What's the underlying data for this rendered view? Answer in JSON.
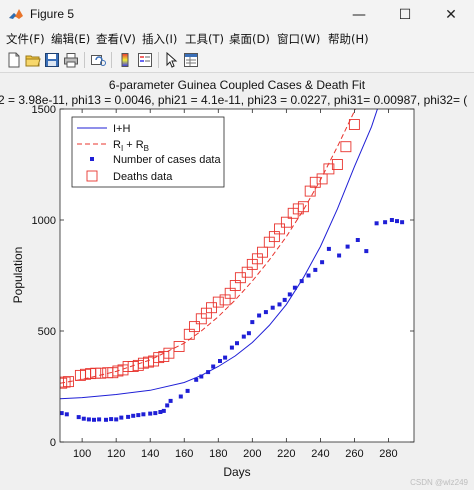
{
  "window": {
    "title": "Figure 5",
    "minimize_glyph": "—",
    "maximize_glyph": "☐",
    "close_glyph": "✕"
  },
  "menu": [
    {
      "label": "文件(F)"
    },
    {
      "label": "编辑(E)"
    },
    {
      "label": "查看(V)"
    },
    {
      "label": "插入(I)"
    },
    {
      "label": "工具(T)"
    },
    {
      "label": "桌面(D)"
    },
    {
      "label": "窗口(W)"
    },
    {
      "label": "帮助(H)"
    }
  ],
  "toolbar": [
    {
      "icon": "new-figure-icon"
    },
    {
      "icon": "open-file-icon"
    },
    {
      "icon": "save-icon"
    },
    {
      "icon": "print-icon"
    },
    {
      "icon": "link-plot-icon"
    },
    {
      "icon": "insert-colorbar-icon"
    },
    {
      "icon": "insert-legend-icon"
    },
    {
      "icon": "edit-plot-arrow-icon"
    },
    {
      "icon": "property-inspector-icon"
    }
  ],
  "figure": {
    "title_line1": "6-parameter Guinea Coupled Cases & Death Fit",
    "title_line2": "2 = 3.98e-11, phi13 = 0.0046, phi21 = 4.1e-11, phi23 = 0.0227, phi31= 0.00987, phi32= (",
    "watermark": "CSDN @wlz249"
  },
  "chart_data": {
    "type": "line",
    "xlabel": "Days",
    "ylabel": "Population",
    "xlim": [
      87,
      295
    ],
    "ylim": [
      0,
      1500
    ],
    "xticks": [
      100,
      120,
      140,
      160,
      180,
      200,
      220,
      240,
      260,
      280
    ],
    "yticks": [
      0,
      500,
      1000,
      1500
    ],
    "grid": false,
    "legend_position": "top-left",
    "colors": {
      "blue": "#1f1fd6",
      "red": "#e8342e"
    },
    "series": [
      {
        "name": "I+H",
        "style": "solid-line",
        "color": "#1f1fd6",
        "x": [
          87,
          100,
          120,
          140,
          160,
          170,
          180,
          190,
          200,
          210,
          220,
          230,
          240,
          250,
          260,
          270,
          280,
          283
        ],
        "y": [
          195,
          200,
          214,
          233,
          268,
          300,
          340,
          388,
          448,
          525,
          620,
          740,
          880,
          1050,
          1240,
          1420,
          1650,
          1740
        ]
      },
      {
        "name": "R_I + R_B",
        "label_base": "R",
        "label_sub1": "I",
        "label_mid": " + R",
        "label_sub2": "B",
        "style": "dashed-line",
        "color": "#e8342e",
        "x": [
          87,
          100,
          120,
          140,
          160,
          170,
          180,
          190,
          200,
          210,
          220,
          230,
          240,
          250,
          260,
          270
        ],
        "y": [
          265,
          282,
          318,
          370,
          445,
          500,
          565,
          640,
          725,
          820,
          925,
          1045,
          1180,
          1330,
          1490,
          1650
        ]
      },
      {
        "name": "Number of cases data",
        "style": "small-filled-square",
        "color": "#1f1fd6",
        "x": [
          88,
          91,
          98,
          101,
          104,
          107,
          110,
          114,
          117,
          120,
          123,
          127,
          130,
          133,
          136,
          140,
          143,
          146,
          148,
          150,
          152,
          158,
          162,
          167,
          170,
          174,
          177,
          181,
          184,
          188,
          191,
          195,
          198,
          200,
          204,
          208,
          212,
          216,
          219,
          222,
          225,
          229,
          233,
          237,
          241,
          245,
          251,
          256,
          262,
          267,
          273,
          278,
          282,
          285,
          288
        ],
        "y": [
          130,
          125,
          112,
          105,
          102,
          100,
          102,
          100,
          103,
          102,
          110,
          113,
          118,
          121,
          125,
          128,
          130,
          135,
          140,
          165,
          185,
          205,
          230,
          280,
          295,
          315,
          340,
          365,
          380,
          425,
          445,
          475,
          490,
          540,
          570,
          585,
          605,
          620,
          640,
          665,
          695,
          725,
          750,
          775,
          810,
          870,
          840,
          880,
          910,
          860,
          985,
          990,
          1000,
          995,
          990
        ]
      },
      {
        "name": "Deaths data",
        "style": "open-square",
        "color": "#e8342e",
        "x": [
          88,
          90,
          92,
          99,
          102,
          105,
          108,
          111,
          115,
          118,
          121,
          124,
          127,
          130,
          133,
          136,
          139,
          142,
          145,
          148,
          151,
          157,
          163,
          166,
          170,
          173,
          176,
          180,
          184,
          187,
          190,
          193,
          197,
          200,
          203,
          206,
          210,
          213,
          216,
          220,
          224,
          227,
          230,
          234,
          237,
          241,
          245,
          250,
          255,
          260
        ],
        "y": [
          265,
          270,
          272,
          300,
          305,
          308,
          310,
          310,
          312,
          312,
          320,
          325,
          340,
          340,
          345,
          355,
          360,
          365,
          380,
          385,
          400,
          430,
          485,
          520,
          555,
          580,
          605,
          630,
          640,
          670,
          705,
          740,
          765,
          800,
          825,
          855,
          900,
          925,
          960,
          990,
          1030,
          1050,
          1060,
          1130,
          1170,
          1185,
          1230,
          1250,
          1330,
          1430
        ]
      }
    ]
  }
}
